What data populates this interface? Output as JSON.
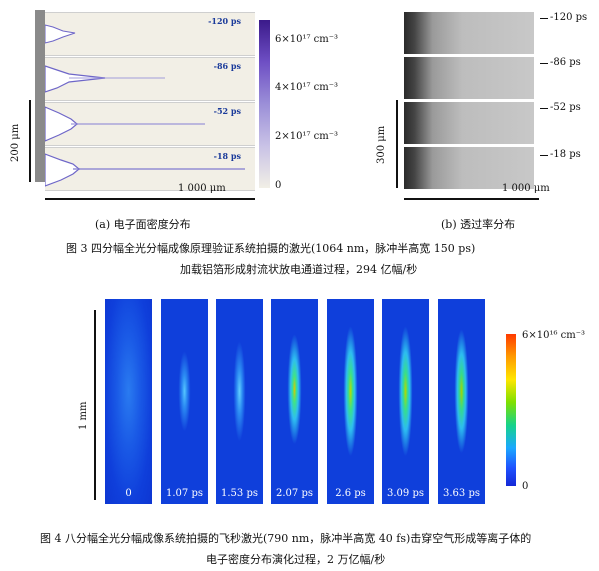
{
  "fig3": {
    "panel_a": {
      "frames": [
        "-120 ps",
        "-86 ps",
        "-52 ps",
        "-18 ps"
      ],
      "scale_x": "1 000 μm",
      "scale_y": "200 μm",
      "colorbar_ticks": [
        "6×10¹⁷ cm⁻³",
        "4×10¹⁷ cm⁻³",
        "2×10¹⁷ cm⁻³",
        "0"
      ],
      "caption": "(a)  电子面密度分布"
    },
    "panel_b": {
      "frames": [
        "-120 ps",
        "-86 ps",
        "-52 ps",
        "-18 ps"
      ],
      "scale_x": "1 000 μm",
      "scale_y": "300 μm",
      "caption": "(b)  透过率分布"
    },
    "caption_line1": "图 3    四分幅全光分幅成像原理验证系统拍摄的激光(1064 nm，脉冲半高宽 150 ps)",
    "caption_line2": "加载铝箔形成射流状放电通道过程，294 亿幅/秒"
  },
  "fig4": {
    "frames": [
      "0",
      "1.07 ps",
      "1.53 ps",
      "2.07 ps",
      "2.6 ps",
      "3.09 ps",
      "3.63 ps"
    ],
    "scale_y": "1 mm",
    "colorbar_top": "6×10¹⁶ cm⁻³",
    "colorbar_bottom": "0",
    "caption_line1": "图 4    八分幅全光分幅成像系统拍摄的飞秒激光(790 nm，脉冲半高宽 40 fs)击穿空气形成等离子体的",
    "caption_line2": "电子密度分布演化过程，2 万亿幅/秒"
  },
  "colors": {
    "colorbar_a_top": "#3b1a8a",
    "colorbar_a_bottom": "#f1efe6",
    "frame_blue": "#1244d8"
  }
}
